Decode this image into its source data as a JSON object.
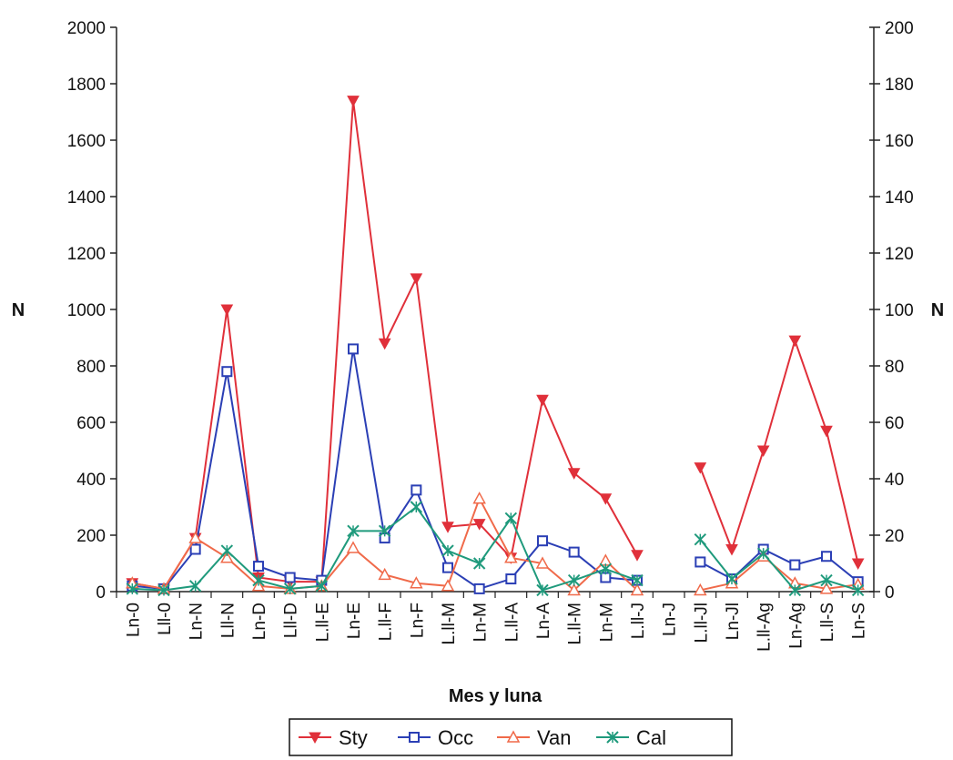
{
  "chart_data": {
    "type": "line",
    "title": "",
    "xlabel": "Mes y luna",
    "ylabel": "N",
    "y2label": "N",
    "ylim": [
      0,
      2000
    ],
    "y2lim": [
      0,
      200
    ],
    "yticks": [
      "0",
      "200",
      "400",
      "600",
      "800",
      "1000",
      "1200",
      "1400",
      "1600",
      "1800",
      "2000"
    ],
    "y2ticks": [
      "0",
      "20",
      "40",
      "60",
      "80",
      "100",
      "120",
      "140",
      "160",
      "180",
      "200"
    ],
    "categories": [
      "Ln-0",
      "Lll-0",
      "Ln-N",
      "Lll-N",
      "Ln-D",
      "Lll-D",
      "L.ll-E",
      "Ln-E",
      "L.ll-F",
      "Ln-F",
      "L.ll-M",
      "Ln-M",
      "L.ll-A",
      "Ln-A",
      "L.ll-M",
      "Ln-M",
      "L.ll-J",
      "Ln-J",
      "L.ll-Jl",
      "Ln-Jl",
      "L.ll-Ag",
      "Ln-Ag",
      "L.ll-S",
      "Ln-S"
    ],
    "grid": false,
    "legend_position": "bottom",
    "series": [
      {
        "name": "Sty",
        "color": "#e0303a",
        "marker": "triangle-down",
        "axis": "left",
        "values": [
          30,
          10,
          190,
          1000,
          50,
          35,
          35,
          1740,
          880,
          1110,
          230,
          240,
          120,
          680,
          420,
          330,
          130,
          null,
          440,
          150,
          500,
          890,
          570,
          100
        ]
      },
      {
        "name": "Occ",
        "color": "#2b3fb5",
        "marker": "square",
        "axis": "left",
        "values": [
          20,
          10,
          150,
          780,
          90,
          50,
          40,
          860,
          190,
          360,
          85,
          10,
          45,
          180,
          140,
          50,
          40,
          null,
          105,
          45,
          150,
          95,
          125,
          35
        ]
      },
      {
        "name": "Van",
        "color": "#f06a4a",
        "marker": "triangle-up",
        "axis": "right",
        "values": [
          3,
          1,
          19,
          12,
          2,
          1,
          2,
          15.5,
          6,
          3,
          2,
          33,
          12,
          10,
          0.5,
          11,
          0.5,
          null,
          0.5,
          3,
          12.5,
          3,
          1,
          2.5
        ]
      },
      {
        "name": "Cal",
        "color": "#1f9a7c",
        "marker": "x",
        "axis": "right",
        "values": [
          1,
          0.5,
          2,
          14.5,
          4,
          1,
          2,
          21.5,
          21.5,
          30,
          14.5,
          10,
          26,
          0.5,
          4,
          8,
          4,
          null,
          18.5,
          4.5,
          13.5,
          0.5,
          4,
          0.5
        ]
      }
    ]
  }
}
